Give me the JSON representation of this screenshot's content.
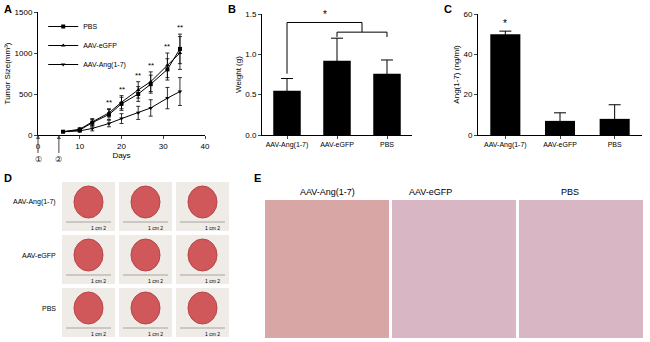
{
  "chart_data": [
    {
      "label": "A",
      "type": "line",
      "x_label": "Days",
      "y_label": "Tumor Size(mm³)",
      "x": [
        6,
        10,
        13,
        17,
        20,
        24,
        27,
        31,
        34
      ],
      "series": [
        {
          "name": "PBS",
          "color": "#000000",
          "marker": "square",
          "values": [
            40,
            60,
            150,
            250,
            380,
            500,
            620,
            800,
            1050
          ],
          "errors": [
            10,
            20,
            40,
            60,
            80,
            90,
            110,
            130,
            180
          ]
        },
        {
          "name": "AAV-eGFP",
          "color": "#000000",
          "marker": "triangle-up",
          "values": [
            40,
            70,
            160,
            270,
            400,
            550,
            650,
            850,
            1000
          ],
          "errors": [
            10,
            20,
            40,
            50,
            80,
            100,
            120,
            150,
            200
          ]
        },
        {
          "name": "AAV-Ang(1-7)",
          "color": "#000000",
          "marker": "triangle-down",
          "values": [
            40,
            50,
            80,
            140,
            200,
            270,
            330,
            450,
            530
          ],
          "errors": [
            10,
            15,
            30,
            40,
            60,
            80,
            100,
            130,
            170
          ]
        }
      ],
      "significance": [
        null,
        null,
        null,
        "**",
        "**",
        "**",
        "**",
        "**",
        "**"
      ],
      "events": [
        {
          "x": 0,
          "label": "①"
        },
        {
          "x": 5,
          "label": "②"
        }
      ],
      "xlim": [
        0,
        40
      ],
      "xticks": [
        0,
        10,
        20,
        30,
        40
      ],
      "ylim": [
        0,
        1500
      ],
      "yticks": [
        0,
        500,
        1000,
        1500
      ],
      "legend": "upper left",
      "grid": false
    },
    {
      "label": "B",
      "type": "bar",
      "y_label": "Weight (g)",
      "categories": [
        "AAV-Ang(1-7)",
        "AAV-eGFP",
        "PBS"
      ],
      "values": [
        0.55,
        0.92,
        0.76
      ],
      "errors": [
        0.15,
        0.28,
        0.17
      ],
      "color": "#000000",
      "significance": {
        "from": "AAV-Ang(1-7)",
        "to": [
          "AAV-eGFP",
          "PBS"
        ],
        "label": "*"
      },
      "ylim": [
        0,
        1.5
      ],
      "yticks": [
        {
          "value": 0,
          "label": "0.0"
        },
        {
          "value": 0.5,
          "label": "0.5"
        },
        {
          "value": 1,
          "label": "1.0"
        },
        {
          "value": 1.5,
          "label": "1.5"
        }
      ],
      "grid": false
    },
    {
      "label": "C",
      "type": "bar",
      "y_label": "Ang(1-7) (ng/ml)",
      "categories": [
        "AAV-Ang(1-7)",
        "AAV-eGFP",
        "PBS"
      ],
      "values": [
        50,
        7,
        8
      ],
      "errors": [
        1.5,
        4,
        7
      ],
      "color": "#000000",
      "significance": [
        "*",
        null,
        null
      ],
      "ylim": [
        0,
        60
      ],
      "yticks": [
        0,
        20,
        40,
        60
      ],
      "grid": false
    }
  ],
  "photo_panels": [
    {
      "label": "D",
      "rows": [
        "AAV-Ang(1-7)",
        "AAV-eGFP",
        "PBS"
      ],
      "columns": 3,
      "ruler_text": "1 cm 2"
    },
    {
      "label": "E",
      "images": [
        "AAV-Ang(1-7)",
        "AAV-eGFP",
        "PBS"
      ]
    }
  ]
}
